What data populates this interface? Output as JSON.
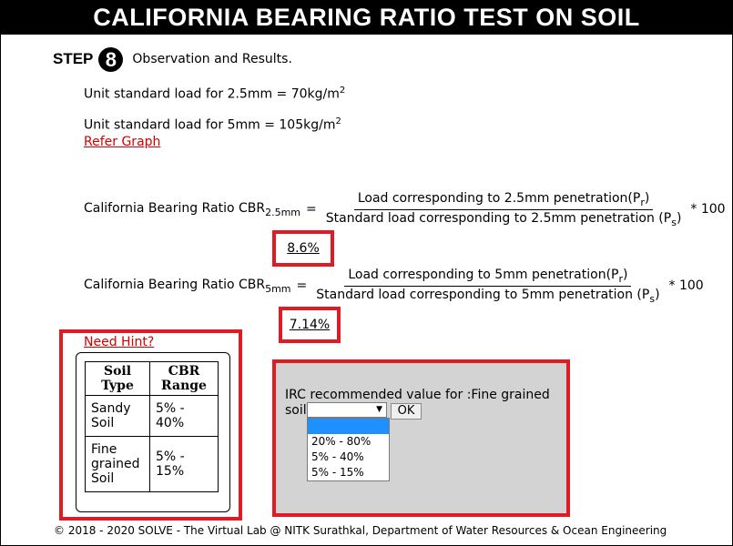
{
  "title": "CALIFORNIA BEARING RATIO TEST ON SOIL",
  "step": {
    "label": "STEP",
    "number": "8",
    "text": "Observation and Results."
  },
  "standard_load": {
    "line1_text": "Unit standard load for 2.5mm = 70kg/m",
    "line1_sup": "2",
    "line2_text": "Unit standard load for 5mm = 105kg/m",
    "line2_sup": "2",
    "refer_graph": "Refer Graph"
  },
  "formula_25": {
    "prefix": "California Bearing Ratio CBR",
    "subscript": "2.5mm",
    "equals": "=",
    "numerator": "Load corresponding to 2.5mm penetration(P",
    "numerator_sub": "r",
    "numerator_close": ")",
    "denominator": "Standard load corresponding to 2.5mm penetration (P",
    "denominator_sub": "s",
    "denominator_close": ")",
    "multiplier": "* 100",
    "result": "8.6%"
  },
  "formula_5": {
    "prefix": "California Bearing Ratio CBR",
    "subscript": "5mm",
    "equals": "=",
    "numerator": "Load corresponding to 5mm penetration(P",
    "numerator_sub": "r",
    "numerator_close": ")",
    "denominator": "Standard load corresponding to 5mm penetration (P",
    "denominator_sub": "s",
    "denominator_close": ")",
    "multiplier": "* 100",
    "result": "7.14%"
  },
  "hint": {
    "link": "Need Hint?",
    "table": {
      "headers": [
        "Soil Type",
        "CBR Range"
      ],
      "rows": [
        [
          "Sandy Soil",
          "5% - 40%"
        ],
        [
          "Fine grained Soil",
          "5% - 15%"
        ]
      ]
    }
  },
  "irc": {
    "prompt": "IRC recommended value for :Fine grained soil",
    "selected_value": "",
    "ok_label": "OK",
    "options": [
      "",
      "20% - 80%",
      "5% - 40%",
      "5% - 15%"
    ]
  },
  "footer": "© 2018 - 2020 SOLVE - The Virtual Lab @ NITK Surathkal, Department of Water Resources & Ocean Engineering",
  "colors": {
    "highlight_red": "#e01b24",
    "link_red": "#d40000",
    "panel_gray": "#d3d3d3",
    "selected_blue": "#1e90ff"
  }
}
